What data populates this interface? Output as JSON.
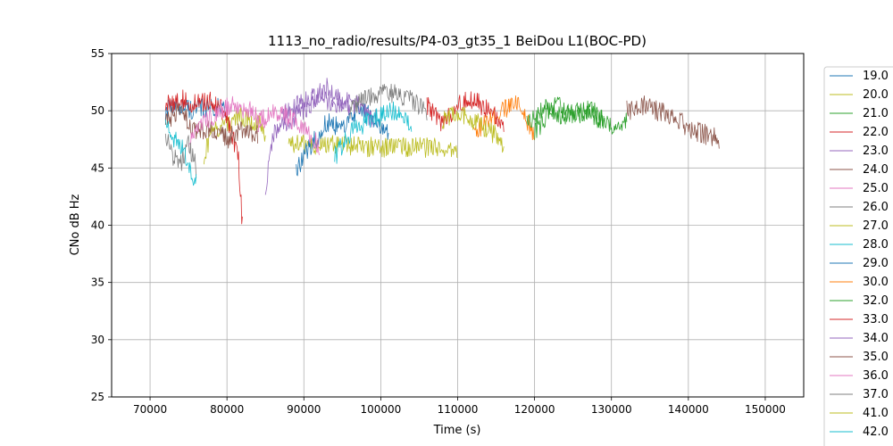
{
  "chart_data": {
    "type": "line",
    "title": "1113_no_radio/results/P4-03_gt35_1 BeiDou L1(BOC-PD)",
    "xlabel": "Time (s)",
    "ylabel": "CNo dB Hz",
    "xlim": [
      65000,
      155000
    ],
    "ylim": [
      25,
      55
    ],
    "xticks": [
      70000,
      80000,
      90000,
      100000,
      110000,
      120000,
      130000,
      140000,
      150000
    ],
    "xtick_labels": [
      "70000",
      "80000",
      "90000",
      "100000",
      "110000",
      "120000",
      "130000",
      "140000",
      "150000"
    ],
    "yticks": [
      25,
      30,
      35,
      40,
      45,
      50,
      55
    ],
    "ytick_labels": [
      "25",
      "30",
      "35",
      "40",
      "45",
      "50",
      "55"
    ],
    "grid": true,
    "legend_position": "right, outside plot (clipped)",
    "series": [
      {
        "name": "19.0",
        "color": "#1f77b4",
        "points": [
          [
            72000,
            50
          ],
          [
            74000,
            50.5
          ],
          [
            76000,
            50
          ],
          [
            78000,
            50.5
          ],
          [
            80000,
            50
          ]
        ]
      },
      {
        "name": "20.0",
        "color": "#bcbd22",
        "points": [
          [
            77000,
            46
          ],
          [
            78000,
            48
          ],
          [
            80000,
            49
          ],
          [
            82000,
            49.5
          ],
          [
            84000,
            49
          ],
          [
            85000,
            48
          ]
        ]
      },
      {
        "name": "21.0",
        "color": "#2ca02c",
        "points": [
          [
            120000,
            48
          ],
          [
            122000,
            50
          ],
          [
            124000,
            49.5
          ],
          [
            126000,
            50
          ],
          [
            128000,
            49.5
          ],
          [
            130000,
            48.5
          ],
          [
            132000,
            49
          ]
        ]
      },
      {
        "name": "22.0",
        "color": "#d62728",
        "points": [
          [
            72000,
            50.5
          ],
          [
            74000,
            51
          ],
          [
            76000,
            50.5
          ],
          [
            78000,
            51
          ],
          [
            80000,
            49.5
          ],
          [
            81500,
            46
          ],
          [
            82000,
            40
          ]
        ]
      },
      {
        "name": "23.0",
        "color": "#9467bd",
        "points": [
          [
            85000,
            43
          ],
          [
            86000,
            48
          ],
          [
            88000,
            49
          ],
          [
            90000,
            50
          ],
          [
            92000,
            51.5
          ],
          [
            94000,
            50.5
          ],
          [
            96000,
            50
          ]
        ]
      },
      {
        "name": "24.0",
        "color": "#8c564b",
        "points": [
          [
            72000,
            49
          ],
          [
            74000,
            50
          ],
          [
            76000,
            48
          ],
          [
            78000,
            48.5
          ],
          [
            80000,
            47.5
          ],
          [
            82000,
            48.5
          ],
          [
            84000,
            48
          ]
        ]
      },
      {
        "name": "25.0",
        "color": "#e377c2",
        "points": [
          [
            75000,
            47
          ],
          [
            77000,
            49
          ],
          [
            79000,
            50
          ],
          [
            81000,
            50.5
          ],
          [
            83000,
            50
          ],
          [
            85000,
            49
          ]
        ]
      },
      {
        "name": "26.0",
        "color": "#7f7f7f",
        "points": [
          [
            72000,
            48
          ],
          [
            73000,
            46
          ],
          [
            74000,
            45.5
          ],
          [
            75000,
            47
          ],
          [
            76000,
            45
          ]
        ]
      },
      {
        "name": "27.0",
        "color": "#bcbd22",
        "points": [
          [
            88000,
            47
          ],
          [
            95000,
            47
          ],
          [
            100000,
            46.8
          ],
          [
            106000,
            46.8
          ],
          [
            110000,
            46.5
          ]
        ]
      },
      {
        "name": "28.0",
        "color": "#17becf",
        "points": [
          [
            72000,
            49
          ],
          [
            73000,
            47.5
          ],
          [
            74000,
            47
          ],
          [
            75000,
            45
          ],
          [
            76000,
            44
          ]
        ]
      },
      {
        "name": "29.0",
        "color": "#1f77b4",
        "points": [
          [
            89000,
            45
          ],
          [
            91000,
            47
          ],
          [
            93000,
            49
          ],
          [
            95000,
            48.5
          ],
          [
            97000,
            50
          ],
          [
            99000,
            49.5
          ],
          [
            101000,
            48
          ]
        ]
      },
      {
        "name": "30.0",
        "color": "#ff7f0e",
        "points": [
          [
            112000,
            48
          ],
          [
            114000,
            49
          ],
          [
            116000,
            50
          ],
          [
            118000,
            51
          ],
          [
            119000,
            49
          ],
          [
            120000,
            47.5
          ]
        ]
      },
      {
        "name": "32.0",
        "color": "#2ca02c",
        "points": [
          [
            119000,
            49
          ],
          [
            121000,
            50
          ],
          [
            123000,
            50.5
          ],
          [
            125000,
            49.5
          ],
          [
            127000,
            50
          ],
          [
            129000,
            49.5
          ]
        ]
      },
      {
        "name": "33.0",
        "color": "#d62728",
        "points": [
          [
            106000,
            50.5
          ],
          [
            108000,
            49
          ],
          [
            110000,
            50.5
          ],
          [
            112000,
            51
          ],
          [
            114000,
            50
          ],
          [
            116000,
            49
          ]
        ]
      },
      {
        "name": "34.0",
        "color": "#9467bd",
        "points": [
          [
            87000,
            49.5
          ],
          [
            89000,
            50.5
          ],
          [
            91000,
            51
          ],
          [
            93000,
            52
          ],
          [
            95000,
            51
          ],
          [
            97000,
            50.5
          ],
          [
            99000,
            49
          ]
        ]
      },
      {
        "name": "35.0",
        "color": "#8c564b",
        "points": [
          [
            132000,
            50
          ],
          [
            134000,
            50.5
          ],
          [
            136000,
            50
          ],
          [
            138000,
            49.5
          ],
          [
            140000,
            48.5
          ],
          [
            142000,
            48
          ],
          [
            144000,
            47.5
          ]
        ]
      },
      {
        "name": "36.0",
        "color": "#e377c2",
        "points": [
          [
            84000,
            49
          ],
          [
            86000,
            50
          ],
          [
            88000,
            49.5
          ],
          [
            90000,
            48.5
          ],
          [
            92000,
            47
          ]
        ]
      },
      {
        "name": "37.0",
        "color": "#7f7f7f",
        "points": [
          [
            96000,
            50
          ],
          [
            98000,
            51
          ],
          [
            100000,
            51.5
          ],
          [
            102000,
            51.5
          ],
          [
            104000,
            51
          ],
          [
            106000,
            50
          ]
        ]
      },
      {
        "name": "41.0",
        "color": "#bcbd22",
        "points": [
          [
            108000,
            49
          ],
          [
            110000,
            50
          ],
          [
            112000,
            49
          ],
          [
            114000,
            48.5
          ],
          [
            116000,
            47
          ]
        ]
      },
      {
        "name": "42.0",
        "color": "#17becf",
        "points": [
          [
            94000,
            46
          ],
          [
            96000,
            48
          ],
          [
            98000,
            49
          ],
          [
            100000,
            49.5
          ],
          [
            102000,
            50
          ],
          [
            104000,
            49
          ]
        ]
      }
    ]
  }
}
